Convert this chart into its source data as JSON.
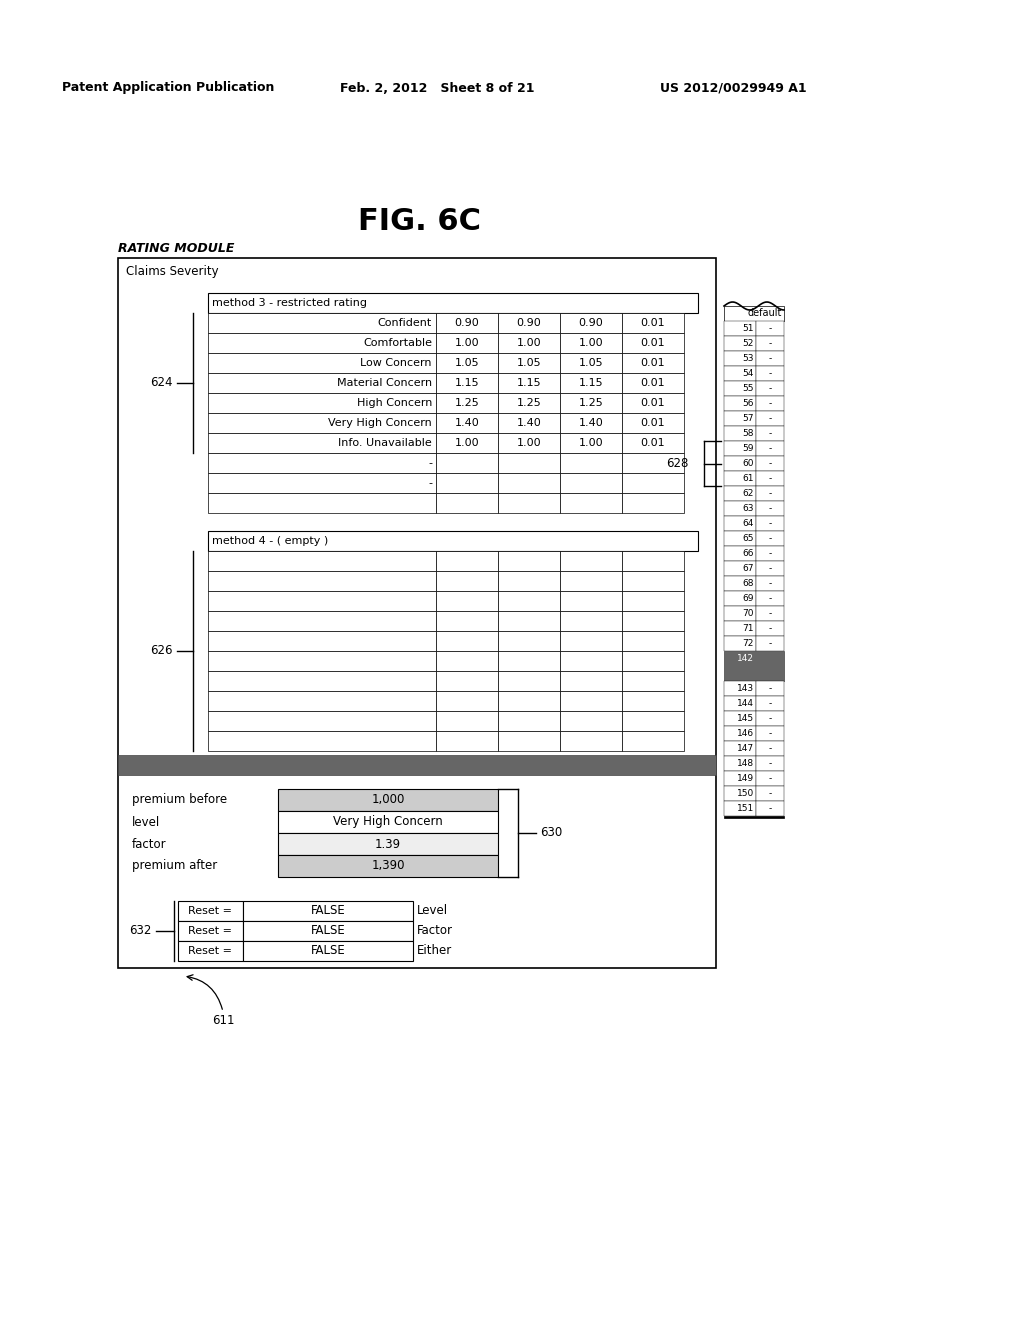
{
  "page_header_left": "Patent Application Publication",
  "page_header_mid": "Feb. 2, 2012   Sheet 8 of 21",
  "page_header_right": "US 2012/0029949 A1",
  "fig_label": "FIG. 6C",
  "module_label": "RATING MODULE",
  "main_box_label": "Claims Severity",
  "method3_header": "method 3 - restricted rating",
  "method3_rows": [
    [
      "Confident",
      "0.90",
      "0.90",
      "0.90",
      "0.01"
    ],
    [
      "Comfortable",
      "1.00",
      "1.00",
      "1.00",
      "0.01"
    ],
    [
      "Low Concern",
      "1.05",
      "1.05",
      "1.05",
      "0.01"
    ],
    [
      "Material Concern",
      "1.15",
      "1.15",
      "1.15",
      "0.01"
    ],
    [
      "High Concern",
      "1.25",
      "1.25",
      "1.25",
      "0.01"
    ],
    [
      "Very High Concern",
      "1.40",
      "1.40",
      "1.40",
      "0.01"
    ],
    [
      "Info. Unavailable",
      "1.00",
      "1.00",
      "1.00",
      "0.01"
    ],
    [
      "-",
      "",
      "",
      "",
      ""
    ],
    [
      "-",
      "",
      "",
      "",
      ""
    ],
    [
      "",
      "",
      "",
      "",
      ""
    ]
  ],
  "method4_header": "method 4 - ( empty )",
  "method4_num_rows": 10,
  "right_nums_top": [
    "51",
    "52",
    "53",
    "54",
    "55",
    "56",
    "57",
    "58",
    "59",
    "60",
    "61",
    "62",
    "63",
    "64",
    "65",
    "66",
    "67",
    "68",
    "69",
    "70",
    "71",
    "72"
  ],
  "right_dark_num": "142",
  "right_nums_bot": [
    "143",
    "144",
    "145",
    "146",
    "147",
    "148",
    "149",
    "150",
    "151"
  ],
  "right_header": "default",
  "premium_before_val": "1,000",
  "level_val": "Very High Concern",
  "factor_val": "1.39",
  "premium_after_val": "1,390",
  "reset_rows": [
    [
      "Reset =",
      "FALSE",
      "Level"
    ],
    [
      "Reset =",
      "FALSE",
      "Factor"
    ],
    [
      "Reset =",
      "FALSE",
      "Either"
    ]
  ],
  "label_624": "624",
  "label_626": "626",
  "label_628": "628",
  "label_630": "630",
  "label_632": "632",
  "label_611": "611"
}
